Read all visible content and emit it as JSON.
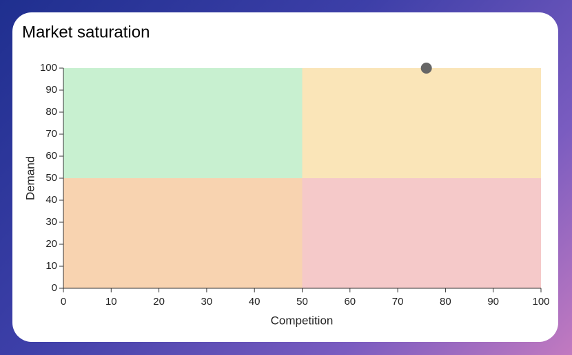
{
  "chart_data": {
    "type": "scatter",
    "title": "Market saturation",
    "x_label": "Competition",
    "y_label": "Demand",
    "x": [
      76
    ],
    "values": [
      100
    ],
    "color": "#666666",
    "xlim": [
      0,
      100
    ],
    "ylim": [
      0,
      100
    ],
    "xticks": [
      0,
      10,
      20,
      30,
      40,
      50,
      60,
      70,
      80,
      90,
      100
    ],
    "yticks": [
      0,
      10,
      20,
      30,
      40,
      50,
      60,
      70,
      80,
      90,
      100
    ],
    "quadrants": {
      "x": 50,
      "y": 50,
      "colors": [
        "#c8f0d0",
        "#fae5b8",
        "#f8d3b0",
        "#f5c9c9"
      ]
    }
  }
}
